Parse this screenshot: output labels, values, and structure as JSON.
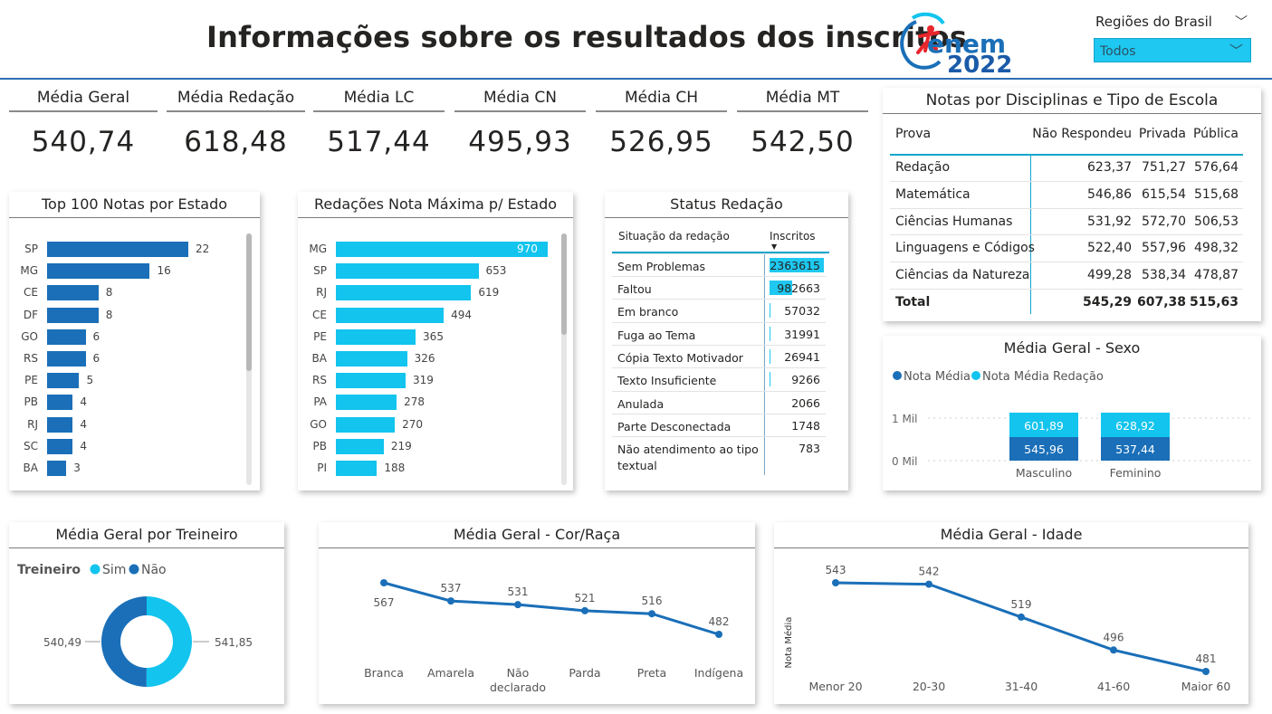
{
  "header": {
    "title": "Informações sobre os resultados dos inscritos",
    "logo_text": "enem",
    "logo_year": "2022"
  },
  "slicer": {
    "label": "Regiões do Brasil",
    "value": "Todos"
  },
  "kpis": [
    {
      "label": "Média Geral",
      "value": "540,74"
    },
    {
      "label": "Média Redação",
      "value": "618,48"
    },
    {
      "label": "Média LC",
      "value": "517,44"
    },
    {
      "label": "Média CN",
      "value": "495,93"
    },
    {
      "label": "Média CH",
      "value": "526,95"
    },
    {
      "label": "Média MT",
      "value": "542,50"
    }
  ],
  "colors": {
    "dark_blue": "#1a6fb8",
    "cyan": "#12c4ee",
    "line_blue": "#1a6fb8"
  },
  "top100": {
    "title": "Top 100 Notas por Estado",
    "chart_data": {
      "type": "bar",
      "categories": [
        "SP",
        "MG",
        "CE",
        "DF",
        "GO",
        "RS",
        "PE",
        "PB",
        "RJ",
        "SC",
        "BA"
      ],
      "values": [
        22,
        16,
        8,
        8,
        6,
        6,
        5,
        4,
        4,
        4,
        3
      ]
    }
  },
  "redacoes": {
    "title": "Redações Nota Máxima p/ Estado",
    "chart_data": {
      "type": "bar",
      "categories": [
        "MG",
        "SP",
        "RJ",
        "CE",
        "PE",
        "BA",
        "RS",
        "PA",
        "GO",
        "PB",
        "PI"
      ],
      "values": [
        970,
        653,
        619,
        494,
        365,
        326,
        319,
        278,
        270,
        219,
        188
      ]
    }
  },
  "status": {
    "title": "Status Redação",
    "col1": "Situação da redação",
    "col2": "Inscritos",
    "rows": [
      {
        "label": "Sem Problemas",
        "value": "2363615",
        "n": 2363615
      },
      {
        "label": "Faltou",
        "value": "982663",
        "n": 982663
      },
      {
        "label": "Em branco",
        "value": "57032",
        "n": 57032
      },
      {
        "label": "Fuga ao Tema",
        "value": "31991",
        "n": 31991
      },
      {
        "label": "Cópia Texto Motivador",
        "value": "26941",
        "n": 26941
      },
      {
        "label": "Texto Insuficiente",
        "value": "9266",
        "n": 9266
      },
      {
        "label": "Anulada",
        "value": "2066",
        "n": 2066
      },
      {
        "label": "Parte Desconectada",
        "value": "1748",
        "n": 1748
      },
      {
        "label": "Não atendimento ao tipo textual",
        "value": "783",
        "n": 783
      }
    ]
  },
  "disciplinas": {
    "title": "Notas por Disciplinas e Tipo de Escola",
    "headers": [
      "Prova",
      "Não Respondeu",
      "Privada",
      "Pública"
    ],
    "rows": [
      [
        "Redação",
        "623,37",
        "751,27",
        "576,64"
      ],
      [
        "Matemática",
        "546,86",
        "615,54",
        "515,68"
      ],
      [
        "Ciências Humanas",
        "531,92",
        "572,70",
        "506,53"
      ],
      [
        "Linguagens e Códigos",
        "522,40",
        "557,96",
        "498,32"
      ],
      [
        "Ciências da Natureza",
        "499,28",
        "538,34",
        "478,87"
      ]
    ],
    "total": [
      "Total",
      "545,29",
      "607,38",
      "515,63"
    ]
  },
  "sexo": {
    "title": "Média Geral - Sexo",
    "legend": [
      "Nota Média",
      "Nota Média Redação"
    ],
    "yticks": [
      "1 Mil",
      "0 Mil"
    ],
    "chart_data": {
      "type": "bar",
      "stacked": true,
      "categories": [
        "Masculino",
        "Feminino"
      ],
      "series": [
        {
          "name": "Nota Média",
          "values": [
            545.96,
            537.44
          ],
          "labels": [
            "545,96",
            "537,44"
          ]
        },
        {
          "name": "Nota Média Redação",
          "values": [
            601.89,
            628.92
          ],
          "labels": [
            "601,89",
            "628,92"
          ]
        }
      ],
      "ylim": [
        0,
        1200
      ]
    }
  },
  "treineiro": {
    "title": "Média Geral por Treineiro",
    "legend_title": "Treineiro",
    "legend": [
      "Sim",
      "Não"
    ],
    "chart_data": {
      "type": "pie",
      "categories": [
        "Sim",
        "Não"
      ],
      "values": [
        541.85,
        540.49
      ],
      "labels": [
        "541,85",
        "540,49"
      ]
    }
  },
  "cor": {
    "title": "Média Geral - Cor/Raça",
    "chart_data": {
      "type": "line",
      "categories": [
        "Branca",
        "Amarela",
        "Não declarado",
        "Parda",
        "Preta",
        "Indígena"
      ],
      "values": [
        567,
        537,
        531,
        521,
        516,
        482
      ]
    }
  },
  "idade": {
    "title": "Média Geral - Idade",
    "ylabel": "Nota Média",
    "chart_data": {
      "type": "line",
      "categories": [
        "Menor 20",
        "20-30",
        "31-40",
        "41-60",
        "Maior 60"
      ],
      "values": [
        543,
        542,
        519,
        496,
        481
      ],
      "ylabel": "Nota Média"
    }
  }
}
